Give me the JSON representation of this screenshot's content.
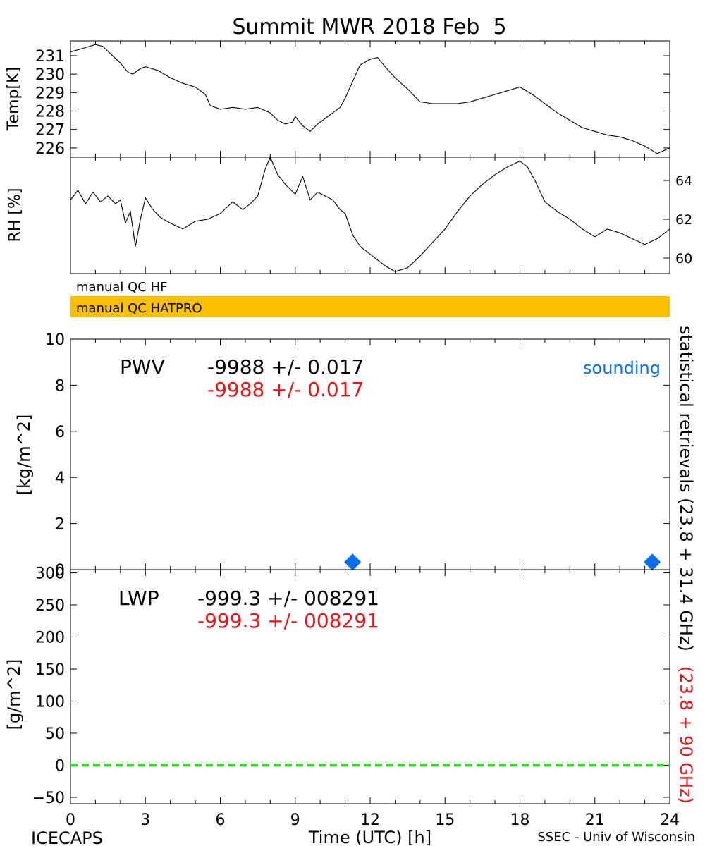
{
  "title": "Summit MWR 2018 Feb  5",
  "colors": {
    "black": "#000000",
    "red": "#e8141a",
    "blue": "#0a6ee8",
    "qc_bar": "#fbc100",
    "green_dash": "#22e81a"
  },
  "chart_data": [
    {
      "id": "temp",
      "type": "line",
      "ylabel": "Temp[K]",
      "xlim": [
        0,
        24
      ],
      "ylim": [
        225.5,
        231.8
      ],
      "yticks": [
        226,
        227,
        228,
        229,
        230,
        231
      ],
      "series": [
        {
          "x": [
            0,
            0.5,
            1,
            1.3,
            1.6,
            2,
            2.3,
            2.5,
            2.8,
            3,
            3.5,
            4,
            4.5,
            5,
            5.4,
            5.6,
            6,
            6.5,
            7,
            7.5,
            8,
            8.3,
            8.6,
            8.9,
            9,
            9.3,
            9.6,
            9.9,
            10.2,
            10.5,
            10.8,
            11,
            11.3,
            11.6,
            12,
            12.3,
            12.6,
            13,
            13.5,
            14,
            14.5,
            15,
            15.5,
            16,
            16.5,
            17,
            17.5,
            18,
            18.5,
            19,
            19.5,
            20,
            20.5,
            21,
            21.5,
            22,
            22.5,
            23,
            23.5,
            24
          ],
          "y": [
            231.2,
            231.4,
            231.6,
            231.5,
            231.1,
            230.6,
            230.1,
            230.0,
            230.3,
            230.4,
            230.2,
            229.8,
            229.5,
            229.3,
            228.9,
            228.3,
            228.1,
            228.2,
            228.1,
            228.2,
            227.9,
            227.5,
            227.3,
            227.4,
            227.7,
            227.2,
            226.9,
            227.3,
            227.6,
            227.9,
            228.2,
            228.7,
            229.6,
            230.5,
            230.8,
            230.9,
            230.4,
            229.8,
            229.2,
            228.5,
            228.4,
            228.4,
            228.4,
            228.5,
            228.7,
            228.9,
            229.1,
            229.3,
            228.9,
            228.4,
            227.9,
            227.5,
            227.1,
            226.9,
            226.7,
            226.6,
            226.4,
            226.1,
            225.7,
            226.0
          ]
        }
      ]
    },
    {
      "id": "rh",
      "type": "line",
      "ylabel": "RH [%]",
      "xlim": [
        0,
        24
      ],
      "ylim": [
        59.2,
        65.2
      ],
      "yticks": [
        60,
        62,
        64
      ],
      "series": [
        {
          "x": [
            0,
            0.3,
            0.6,
            0.9,
            1.2,
            1.5,
            1.8,
            2.0,
            2.2,
            2.4,
            2.6,
            2.8,
            3.0,
            3.3,
            3.6,
            4.0,
            4.5,
            5.0,
            5.5,
            6.0,
            6.5,
            6.9,
            7.2,
            7.5,
            7.8,
            8.0,
            8.3,
            8.6,
            9.0,
            9.3,
            9.6,
            9.9,
            10.2,
            10.5,
            10.8,
            11.0,
            11.3,
            11.6,
            12.0,
            12.3,
            12.6,
            13.0,
            13.5,
            14.0,
            14.5,
            15.0,
            15.5,
            16.0,
            16.5,
            17.0,
            17.5,
            18.0,
            18.3,
            18.6,
            19.0,
            19.5,
            20.0,
            20.5,
            21.0,
            21.5,
            22.0,
            22.5,
            23.0,
            23.5,
            24.0
          ],
          "y": [
            63.0,
            63.5,
            62.8,
            63.4,
            62.9,
            63.2,
            62.8,
            63.0,
            61.8,
            62.4,
            60.6,
            62.0,
            63.1,
            62.5,
            62.1,
            61.8,
            61.5,
            61.9,
            62.0,
            62.3,
            62.9,
            62.5,
            62.8,
            63.2,
            64.6,
            65.2,
            64.3,
            63.8,
            63.3,
            64.2,
            63.0,
            63.4,
            63.2,
            63.0,
            62.5,
            62.3,
            61.2,
            60.6,
            60.2,
            59.9,
            59.6,
            59.3,
            59.5,
            60.1,
            60.8,
            61.5,
            62.4,
            63.2,
            63.8,
            64.3,
            64.7,
            65.0,
            64.7,
            64.0,
            62.9,
            62.4,
            62.0,
            61.5,
            61.1,
            61.5,
            61.3,
            61.0,
            60.7,
            61.0,
            61.5
          ]
        }
      ]
    },
    {
      "id": "pwv",
      "type": "scatter",
      "ylabel": "[kg/m^2]",
      "xlim": [
        0,
        24
      ],
      "ylim": [
        0,
        10
      ],
      "yticks": [
        0,
        2,
        4,
        6,
        8,
        10
      ],
      "series": [
        {
          "name": "sounding",
          "x": [
            11.3,
            23.3
          ],
          "y": [
            0.3,
            0.3
          ]
        }
      ]
    },
    {
      "id": "lwp",
      "type": "line",
      "ylabel": "[g/m^2]",
      "xlim": [
        0,
        24
      ],
      "ylim": [
        -60,
        305
      ],
      "yticks": [
        -50,
        0,
        50,
        100,
        150,
        200,
        250,
        300
      ],
      "xticks": [
        0,
        3,
        6,
        9,
        12,
        15,
        18,
        21,
        24
      ],
      "xlabel": "Time (UTC) [h]",
      "series": [
        {
          "x": [
            0,
            24
          ],
          "y": [
            0,
            0
          ]
        }
      ]
    }
  ],
  "qc": {
    "hf_label": "manual QC HF",
    "hatpro_label": "manual QC HATPRO"
  },
  "pwv_panel": {
    "label": "PWV",
    "black_value": "-9988 +/- 0.017",
    "red_value": "-9988 +/- 0.017",
    "legend": "sounding"
  },
  "lwp_panel": {
    "label": "LWP",
    "black_value": "-999.3 +/- 008291",
    "red_value": "-999.3 +/- 008291"
  },
  "side_labels": {
    "black": "statistical retrievals (23.8 + 31.4 GHz)",
    "red": "(23.8 + 90 GHz)"
  },
  "footer": {
    "left": "ICECAPS",
    "right": "SSEC - Univ of Wisconsin"
  }
}
